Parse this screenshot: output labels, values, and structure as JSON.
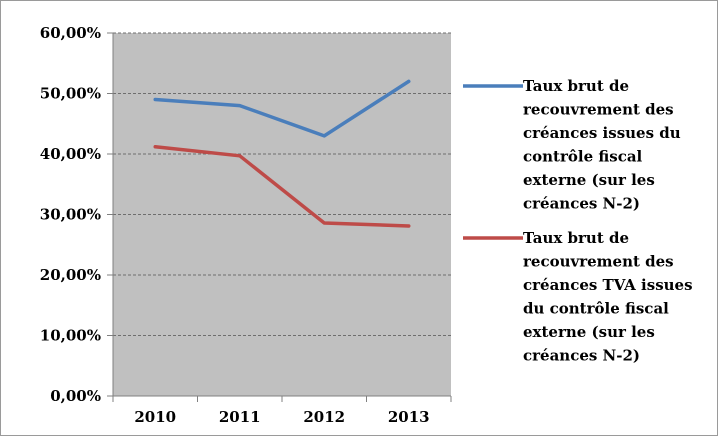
{
  "chart_data": {
    "type": "line",
    "title": "",
    "xlabel": "",
    "ylabel": "",
    "categories": [
      "2010",
      "2011",
      "2012",
      "2013"
    ],
    "ylim": [
      0,
      60
    ],
    "yticks": [
      0,
      10,
      20,
      30,
      40,
      50,
      60
    ],
    "ytick_labels": [
      "0,00%",
      "10,00%",
      "20,00%",
      "30,00%",
      "40,00%",
      "50,00%",
      "60,00%"
    ],
    "grid": true,
    "plot_background": "#c0c0c0",
    "legend_position": "right",
    "series": [
      {
        "name": "Taux brut de recouvrement des créances issues du contrôle fiscal externe (sur les créances N-2)",
        "legend_lines": [
          "Taux brut de",
          "recouvrement des",
          "créances issues du",
          "contrôle fiscal",
          "externe (sur les",
          "créances N-2)"
        ],
        "color": "#4a7ebb",
        "values": [
          49.0,
          48.0,
          43.0,
          52.0
        ]
      },
      {
        "name": "Taux brut de recouvrement des créances TVA issues du contrôle fiscal externe (sur les créances N-2)",
        "legend_lines": [
          "Taux brut de",
          "recouvrement des",
          "créances TVA issues",
          "du contrôle fiscal",
          "externe (sur les",
          "créances N-2)"
        ],
        "color": "#be4b48",
        "values": [
          41.2,
          39.7,
          28.6,
          28.1
        ]
      }
    ]
  }
}
